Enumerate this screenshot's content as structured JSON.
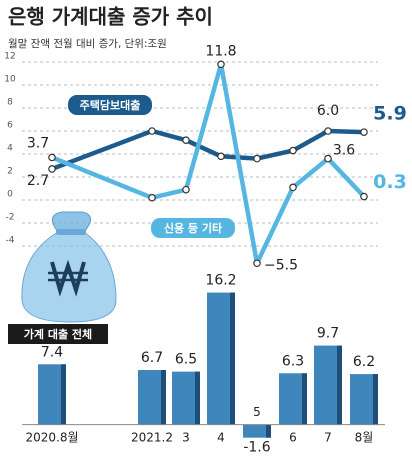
{
  "title": "은행 가계대출 증가 추이",
  "subtitle": "월말 잔액 전월 대비 증가, 단위:조원",
  "chart_data": [
    {
      "type": "line",
      "ylim": [
        -6,
        13
      ],
      "yticks": [
        12,
        10,
        8,
        6,
        4,
        2,
        0,
        -2,
        -4
      ],
      "grid": true,
      "series": [
        {
          "name": "주택담보대출",
          "color": "#1d5b8c",
          "values": [
            2.7,
            6.0,
            5.2,
            3.8,
            3.6,
            4.3,
            6.0,
            5.9
          ],
          "value_labels": [
            "2.7",
            null,
            null,
            null,
            null,
            null,
            "6.0",
            "5.9"
          ]
        },
        {
          "name": "신용 등 기타",
          "color": "#56b6e2",
          "values": [
            3.7,
            0.2,
            0.9,
            11.8,
            -5.5,
            1.1,
            3.6,
            0.3
          ],
          "value_labels": [
            "3.7",
            null,
            null,
            "11.8",
            "−5.5",
            null,
            "3.6",
            "0.3"
          ]
        }
      ]
    },
    {
      "type": "bar",
      "title": "가계 대출 전체",
      "color": "#3f86bd",
      "categories": [
        "2020.8월",
        "2021.2",
        "3",
        "4",
        "5",
        "6",
        "7",
        "8월"
      ],
      "values": [
        7.4,
        6.7,
        6.5,
        16.2,
        -1.6,
        6.3,
        9.7,
        6.2
      ],
      "ylim": [
        -2.5,
        17.5
      ]
    }
  ]
}
